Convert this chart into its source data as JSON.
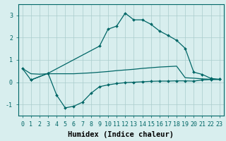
{
  "bg_color": "#d8eeee",
  "line_color": "#006666",
  "grid_color": "#aacccc",
  "xlabel": "Humidex (Indice chaleur)",
  "xlabel_fontsize": 7.5,
  "tick_fontsize": 6.0,
  "ylim": [
    -1.5,
    3.5
  ],
  "xlim": [
    -0.5,
    23.5
  ],
  "yticks": [
    -1,
    0,
    1,
    2,
    3
  ],
  "xticks": [
    0,
    1,
    2,
    3,
    4,
    5,
    6,
    7,
    8,
    9,
    10,
    11,
    12,
    13,
    14,
    15,
    16,
    17,
    18,
    19,
    20,
    21,
    22,
    23
  ],
  "curve1_x": [
    0,
    1,
    3,
    9,
    10,
    11,
    12,
    13,
    14,
    15,
    16,
    17,
    18,
    19,
    20,
    21,
    22,
    23
  ],
  "curve1_y": [
    0.62,
    0.1,
    0.4,
    1.62,
    2.38,
    2.52,
    3.1,
    2.8,
    2.8,
    2.6,
    2.3,
    2.1,
    1.88,
    1.52,
    0.45,
    0.35,
    0.17,
    0.13
  ],
  "curve2_x": [
    0,
    1,
    2,
    3,
    4,
    5,
    6,
    7,
    8,
    9,
    10,
    11,
    12,
    13,
    14,
    15,
    16,
    17,
    18,
    19,
    20,
    21,
    22,
    23
  ],
  "curve2_y": [
    0.62,
    0.38,
    0.36,
    0.38,
    0.38,
    0.38,
    0.38,
    0.4,
    0.42,
    0.45,
    0.48,
    0.52,
    0.55,
    0.58,
    0.62,
    0.65,
    0.68,
    0.7,
    0.72,
    0.2,
    0.18,
    0.15,
    0.13,
    0.12
  ],
  "curve3_x": [
    1,
    3,
    4,
    5,
    6,
    7,
    8,
    9,
    10,
    11,
    12,
    13,
    14,
    15,
    16,
    17,
    18,
    19,
    20,
    21,
    22,
    23
  ],
  "curve3_y": [
    0.1,
    0.4,
    -0.58,
    -1.15,
    -1.08,
    -0.9,
    -0.5,
    -0.2,
    -0.12,
    -0.06,
    -0.02,
    0.0,
    0.02,
    0.04,
    0.05,
    0.05,
    0.06,
    0.06,
    0.05,
    0.1,
    0.12,
    0.13
  ]
}
